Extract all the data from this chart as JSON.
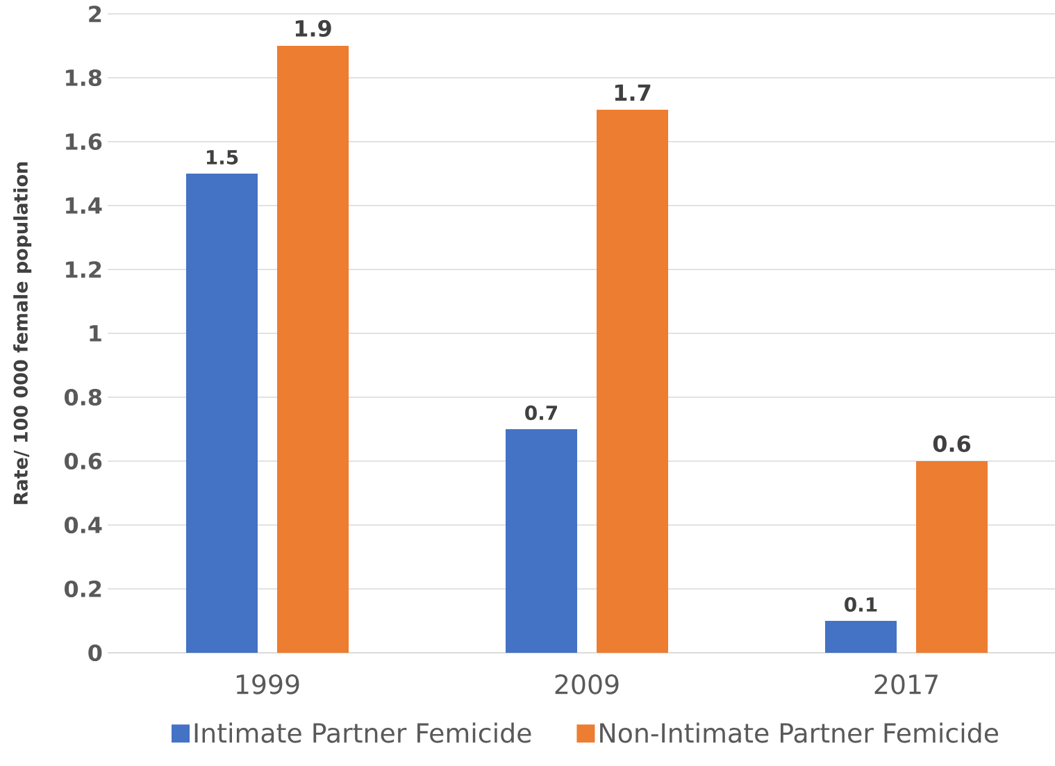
{
  "chart_data": {
    "type": "bar",
    "ylabel": "Rate/ 100 000 female population",
    "categories": [
      "1999",
      "2009",
      "2017"
    ],
    "series": [
      {
        "name": "Intimate Partner Femicide",
        "color": "#4472c4",
        "values": [
          1.5,
          0.7,
          0.1
        ]
      },
      {
        "name": "Non-Intimate Partner Femicide",
        "color": "#ed7d31",
        "values": [
          1.9,
          1.7,
          0.6
        ]
      }
    ],
    "ylim": [
      0,
      2
    ],
    "yticks": [
      0,
      0.2,
      0.4,
      0.6,
      0.8,
      1,
      1.2,
      1.4,
      1.6,
      1.8,
      2
    ],
    "grid": "y",
    "legend": "bottom",
    "data_labels": true
  }
}
